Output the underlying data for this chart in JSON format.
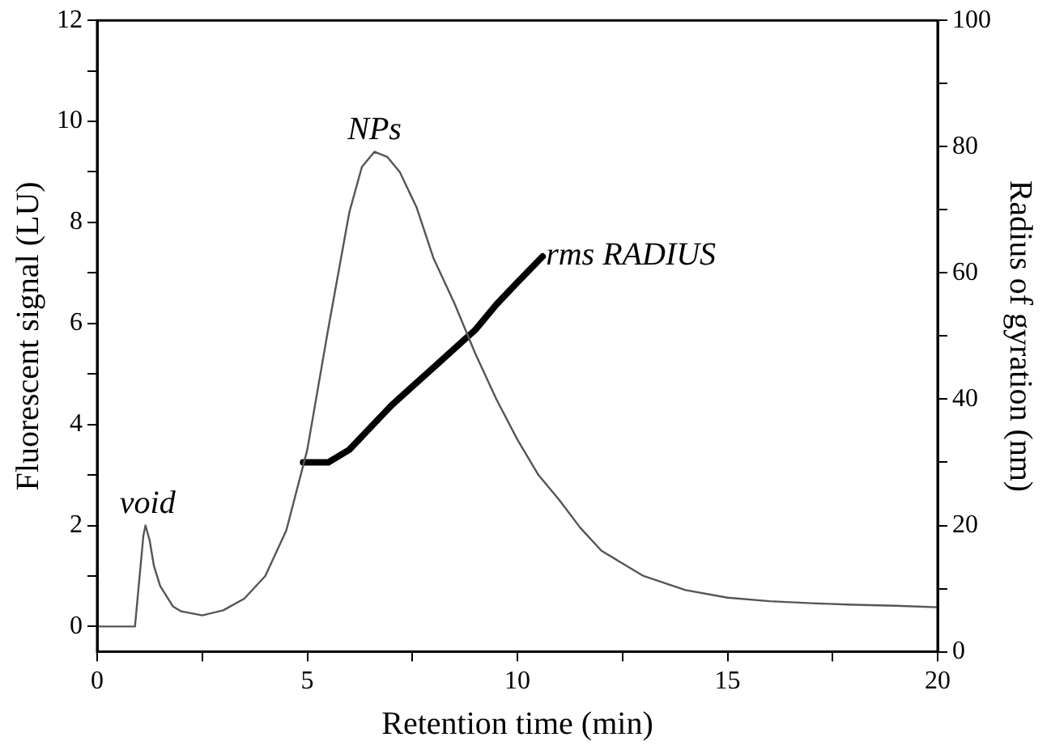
{
  "chart_data": {
    "type": "line",
    "xlabel": "Retention time (min)",
    "ylabel": "Fluorescent signal (LU)",
    "y2label": "Radius of gyration (nm)",
    "xlim": [
      0,
      20
    ],
    "xticks": [
      0,
      {
        "value": 2.5,
        "label": null
      },
      5,
      {
        "value": 7.5,
        "label": null
      },
      10,
      {
        "value": 12.5,
        "label": null
      },
      15,
      {
        "value": 17.5,
        "label": null
      },
      20
    ],
    "ylim": [
      -0.5,
      12
    ],
    "yticks": [
      0,
      {
        "value": 1,
        "label": null
      },
      2,
      {
        "value": 3,
        "label": null
      },
      4,
      {
        "value": 5,
        "label": null
      },
      6,
      {
        "value": 7,
        "label": null
      },
      8,
      {
        "value": 9,
        "label": null
      },
      10,
      {
        "value": 11,
        "label": null
      },
      12
    ],
    "y2lim": [
      0,
      100
    ],
    "y2ticks": [
      0,
      {
        "value": 10,
        "label": null
      },
      20,
      {
        "value": 30,
        "label": null
      },
      40,
      {
        "value": 50,
        "label": null
      },
      60,
      {
        "value": 70,
        "label": null
      },
      80,
      {
        "value": 90,
        "label": null
      },
      100
    ],
    "grid": false,
    "legend": false,
    "marker": "none",
    "line_style": "solid",
    "series": [
      {
        "color": "#555555",
        "x": [
          0,
          0.9,
          1.0,
          1.1,
          1.15,
          1.25,
          1.35,
          1.5,
          1.8,
          2.0,
          2.5,
          3.0,
          3.5,
          4.0,
          4.5,
          5.0,
          5.5,
          6.0,
          6.3,
          6.6,
          6.9,
          7.2,
          7.6,
          8.0,
          8.5,
          9.0,
          9.5,
          10,
          10.5,
          11,
          11.5,
          12,
          13,
          14,
          15,
          16,
          17,
          18,
          19,
          20
        ],
        "values": [
          0,
          0,
          0.9,
          1.8,
          2.0,
          1.7,
          1.2,
          0.8,
          0.4,
          0.3,
          0.22,
          0.32,
          0.55,
          1.0,
          1.9,
          3.5,
          5.9,
          8.2,
          9.1,
          9.4,
          9.3,
          9.0,
          8.3,
          7.3,
          6.4,
          5.4,
          4.5,
          3.7,
          3.0,
          2.5,
          1.95,
          1.5,
          1.0,
          0.72,
          0.57,
          0.5,
          0.46,
          0.43,
          0.41,
          0.38
        ]
      },
      {
        "color": "#000000",
        "axis": "y2",
        "x": [
          4.9,
          5.5,
          6.0,
          6.5,
          7.0,
          7.5,
          8.0,
          8.5,
          9.0,
          9.5,
          10.0,
          10.6
        ],
        "values": [
          30,
          30,
          32,
          35.5,
          39,
          42,
          45,
          48,
          51,
          55,
          58.5,
          62.6
        ]
      }
    ],
    "annotations": [
      {
        "text": "void",
        "x": 1.2,
        "y": 2.0
      },
      {
        "text": "NPs",
        "x": 6.6,
        "y": 9.4
      },
      {
        "text": "rms RADIUS",
        "x": 10.6,
        "y": 7.3
      }
    ]
  }
}
